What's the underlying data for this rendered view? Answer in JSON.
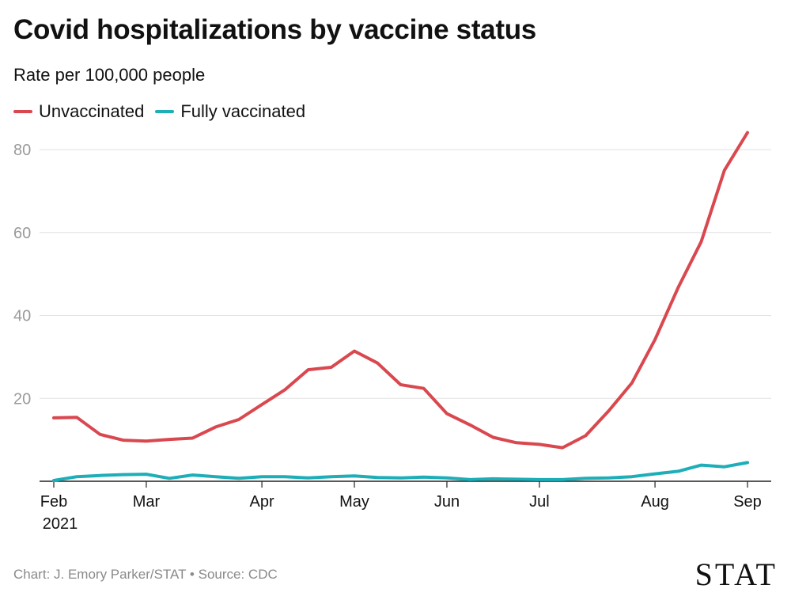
{
  "title": "Covid hospitalizations by vaccine status",
  "subtitle": "Rate per 100,000 people",
  "footer": {
    "credit": "Chart: J. Emory Parker/STAT • Source: CDC",
    "logo": "STAT"
  },
  "chart_data": {
    "type": "line",
    "ylim": [
      0,
      84
    ],
    "yticks": [
      20,
      40,
      60,
      80
    ],
    "grid": true,
    "legend_position": "top-left",
    "xticks": [
      {
        "label": "Feb",
        "sublabel": "2021",
        "date": "2021-01-31"
      },
      {
        "label": "Mar",
        "sublabel": "",
        "date": "2021-02-28"
      },
      {
        "label": "Apr",
        "sublabel": "",
        "date": "2021-04-04"
      },
      {
        "label": "May",
        "sublabel": "",
        "date": "2021-05-02"
      },
      {
        "label": "Jun",
        "sublabel": "",
        "date": "2021-05-30"
      },
      {
        "label": "Jul",
        "sublabel": "",
        "date": "2021-06-27"
      },
      {
        "label": "Aug",
        "sublabel": "",
        "date": "2021-08-01"
      },
      {
        "label": "Sep",
        "sublabel": "",
        "date": "2021-08-29"
      }
    ],
    "x": [
      "2021-01-31",
      "2021-02-07",
      "2021-02-14",
      "2021-02-21",
      "2021-02-28",
      "2021-03-07",
      "2021-03-14",
      "2021-03-21",
      "2021-03-28",
      "2021-04-04",
      "2021-04-11",
      "2021-04-18",
      "2021-04-25",
      "2021-05-02",
      "2021-05-09",
      "2021-05-16",
      "2021-05-23",
      "2021-05-30",
      "2021-06-06",
      "2021-06-13",
      "2021-06-20",
      "2021-06-27",
      "2021-07-04",
      "2021-07-11",
      "2021-07-18",
      "2021-07-25",
      "2021-08-01",
      "2021-08-08",
      "2021-08-15",
      "2021-08-22",
      "2021-08-29"
    ],
    "series": [
      {
        "name": "Unvaccinated",
        "color": "#d9484f",
        "values": [
          15.3,
          15.4,
          11.3,
          9.9,
          9.7,
          10.1,
          10.4,
          13.1,
          14.9,
          18.5,
          22.1,
          26.9,
          27.5,
          31.4,
          28.5,
          23.3,
          22.4,
          16.3,
          13.6,
          10.6,
          9.3,
          8.9,
          8.1,
          11.0,
          17.0,
          23.7,
          34.2,
          46.7,
          57.8,
          75.0,
          84.1
        ]
      },
      {
        "name": "Fully vaccinated",
        "color": "#1eaeb8",
        "values": [
          0.2,
          1.1,
          1.4,
          1.6,
          1.7,
          0.7,
          1.5,
          1.1,
          0.7,
          1.1,
          1.1,
          0.8,
          1.1,
          1.3,
          0.9,
          0.8,
          1.0,
          0.8,
          0.4,
          0.6,
          0.5,
          0.4,
          0.4,
          0.7,
          0.8,
          1.1,
          1.8,
          2.4,
          3.9,
          3.5,
          4.5
        ]
      }
    ],
    "colors": {
      "grid": "#e2e2e2",
      "axis": "#222222",
      "tick_label": "#9a9a9a"
    }
  }
}
